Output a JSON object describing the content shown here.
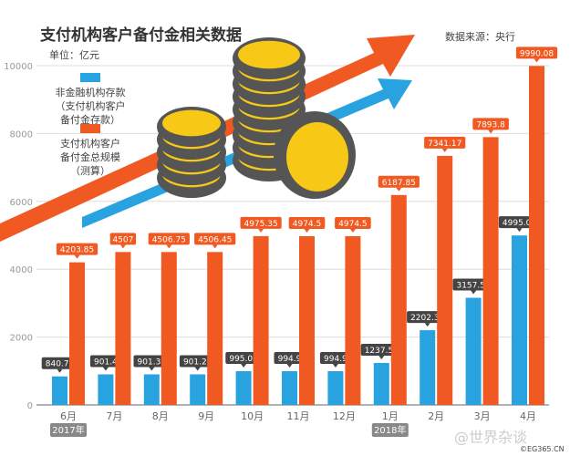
{
  "chart_data": {
    "type": "bar",
    "title": "支付机构客户备付金相关数据",
    "unit": "单位：亿元",
    "source": "数据来源：央行",
    "categories": [
      "6月",
      "7月",
      "8月",
      "9月",
      "10月",
      "11月",
      "12月",
      "1月",
      "2月",
      "3月",
      "4月"
    ],
    "year_labels": [
      {
        "index": 0,
        "label": "2017年"
      },
      {
        "index": 7,
        "label": "2018年"
      }
    ],
    "series": [
      {
        "name": "非金融机构存款（支付机构客户备付金存款）",
        "color": "#29a3e0",
        "values": [
          840.77,
          901.4,
          901.35,
          901.29,
          995.07,
          994.9,
          994.9,
          1237.57,
          2202.35,
          3157.52,
          4995.04
        ],
        "labels": [
          "840.77",
          "901.4",
          "901.35",
          "901.29",
          "995.07",
          "994.9",
          "994.9",
          "1237.57",
          "2202.35",
          "3157.52",
          "4995.04"
        ]
      },
      {
        "name": "支付机构客户备付金总规模（测算）",
        "color": "#f05a22",
        "values": [
          4203.85,
          4507,
          4506.75,
          4506.45,
          4975.35,
          4974.5,
          4974.5,
          6187.85,
          7341.17,
          7893.8,
          9990.08
        ],
        "labels": [
          "4203.85",
          "4507",
          "4506.75",
          "4506.45",
          "4975.35",
          "4974.5",
          "4974.5",
          "6187.85",
          "7341.17",
          "7893.8",
          "9990.08"
        ]
      }
    ],
    "ylim": [
      0,
      10000
    ],
    "yticks": [
      "0",
      "2000",
      "4000",
      "6000",
      "8000",
      "10000"
    ],
    "grid": true,
    "legend": "top-left"
  },
  "legend": {
    "blue": "非金融机构存款\n（支付机构客户\n备付金存款）",
    "orange": "支付机构客户\n备付金总规模\n（测算）"
  },
  "watermark": "@世界杂谈",
  "copyright": "©EG365.CN"
}
